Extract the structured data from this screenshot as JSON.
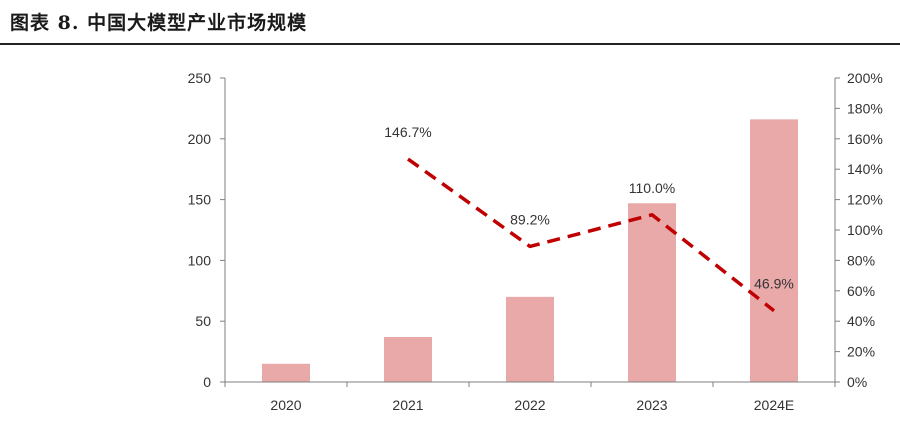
{
  "figure": {
    "title": "图表 8. 中国大模型产业市场规模"
  },
  "colors": {
    "bar": "#e9a9a9",
    "line": "#c00000",
    "axis": "#7f7f7f",
    "text": "#333333"
  },
  "chart_data": {
    "type": "bar",
    "categories": [
      "2020",
      "2021",
      "2022",
      "2023",
      "2024E"
    ],
    "series": [
      {
        "kind": "bar",
        "axis": "left",
        "values": [
          15,
          37,
          70,
          147,
          216
        ]
      },
      {
        "kind": "line",
        "axis": "right",
        "style": "dashed",
        "values": [
          null,
          146.7,
          89.2,
          110.0,
          46.9
        ],
        "labels": [
          "",
          "146.7%",
          "89.2%",
          "110.0%",
          "46.9%"
        ]
      }
    ],
    "y_left": {
      "min": 0,
      "max": 250,
      "ticks": [
        "0",
        "50",
        "100",
        "150",
        "200",
        "250"
      ]
    },
    "y_right": {
      "min": 0,
      "max": 200,
      "ticks": [
        "0%",
        "20%",
        "40%",
        "60%",
        "80%",
        "100%",
        "120%",
        "140%",
        "160%",
        "180%",
        "200%"
      ]
    },
    "grid": false,
    "legend": "none"
  }
}
